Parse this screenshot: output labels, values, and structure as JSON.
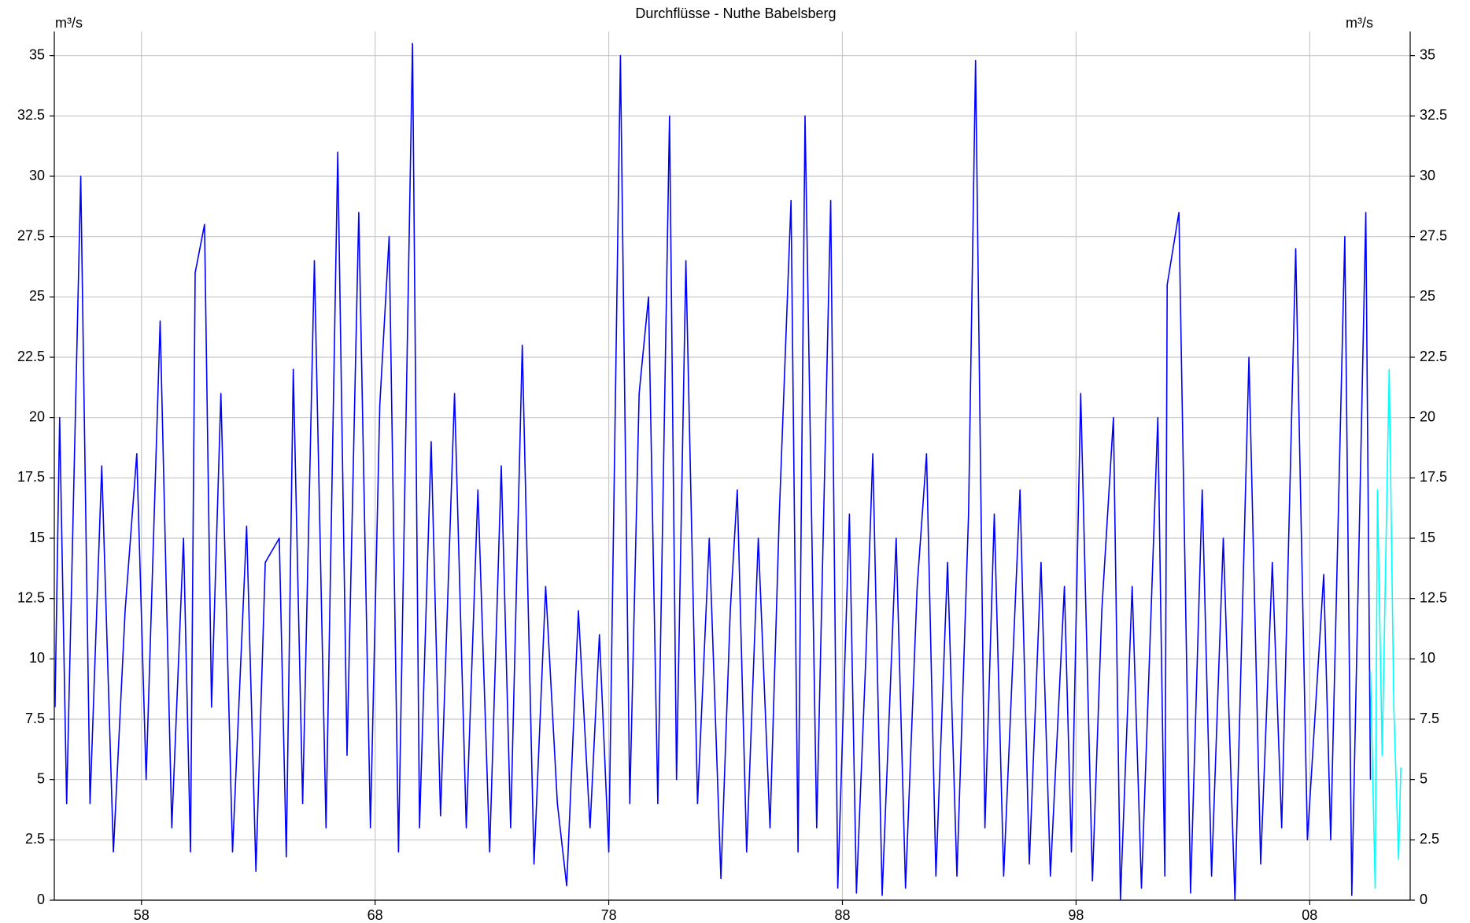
{
  "chart_data": {
    "type": "line",
    "title": "Durchflüsse - Nuthe Babelsberg",
    "ylabel": "m³/s",
    "y2label": "m³/s",
    "xlim": [
      1954.27,
      2012.3
    ],
    "xticks": [
      {
        "value": 1958,
        "label": "58"
      },
      {
        "value": 1968,
        "label": "68"
      },
      {
        "value": 1978,
        "label": "78"
      },
      {
        "value": 1988,
        "label": "88"
      },
      {
        "value": 1998,
        "label": "98"
      },
      {
        "value": 2008,
        "label": "08"
      }
    ],
    "ylim": [
      0,
      36
    ],
    "yticks": [
      0,
      2.5,
      5,
      7.5,
      10,
      12.5,
      15,
      17.5,
      20,
      22.5,
      25,
      27.5,
      30,
      32.5,
      35
    ],
    "y2lim": [
      0,
      36
    ],
    "y2ticks": [
      0,
      2.5,
      5,
      7.5,
      10,
      12.5,
      15,
      17.5,
      20,
      22.5,
      25,
      27.5,
      30,
      32.5,
      35
    ],
    "grid": true,
    "series": [
      {
        "color": "#0000ff",
        "x": [
          1954.3,
          1954.5,
          1954.8,
          1955.4,
          1955.8,
          1956.3,
          1956.8,
          1957.3,
          1957.8,
          1958.2,
          1958.8,
          1959.3,
          1959.8,
          1960.1,
          1960.3,
          1960.7,
          1961.0,
          1961.4,
          1961.9,
          1962.5,
          1962.9,
          1963.3,
          1963.9,
          1964.2,
          1964.5,
          1964.9,
          1965.4,
          1965.9,
          1966.4,
          1966.8,
          1967.3,
          1967.8,
          1968.2,
          1968.6,
          1969.0,
          1969.6,
          1969.9,
          1970.4,
          1970.8,
          1971.4,
          1971.9,
          1972.4,
          1972.9,
          1973.4,
          1973.8,
          1974.3,
          1974.8,
          1975.3,
          1975.8,
          1976.2,
          1976.7,
          1977.2,
          1977.6,
          1978.0,
          1978.5,
          1978.9,
          1979.3,
          1979.7,
          1980.1,
          1980.6,
          1980.9,
          1981.3,
          1981.8,
          1982.3,
          1982.8,
          1983.2,
          1983.5,
          1983.9,
          1984.4,
          1984.9,
          1985.3,
          1985.8,
          1986.1,
          1986.4,
          1986.9,
          1987.5,
          1987.8,
          1988.3,
          1988.6,
          1989.0,
          1989.3,
          1989.7,
          1990.3,
          1990.7,
          1991.2,
          1991.6,
          1992.0,
          1992.5,
          1992.9,
          1993.4,
          1993.7,
          1994.1,
          1994.5,
          1994.9,
          1995.6,
          1996.0,
          1996.5,
          1996.9,
          1997.5,
          1997.8,
          1998.2,
          1998.7,
          1999.1,
          1999.6,
          1999.9,
          2000.4,
          2000.8,
          2001.5,
          2001.8,
          2001.9,
          2002.4,
          2002.9,
          2003.4,
          2003.8,
          2004.3,
          2004.8,
          2005.4,
          2005.9,
          2006.4,
          2006.8,
          2007.4,
          2007.9,
          2008.6,
          2008.9,
          2009.5,
          2009.8,
          2010.4,
          2010.6
        ],
        "values": [
          8,
          20,
          4,
          30,
          4,
          18,
          2,
          12,
          18.5,
          5,
          24,
          3,
          15,
          2,
          26,
          28,
          8,
          21,
          2,
          15.5,
          1.2,
          14,
          15,
          1.8,
          22,
          4,
          26.5,
          3,
          31,
          6,
          28.5,
          3,
          20.5,
          27.5,
          2,
          35.5,
          3,
          19,
          3.5,
          21,
          3,
          17,
          2,
          18,
          3,
          23,
          1.5,
          13,
          4,
          0.6,
          12,
          3,
          11,
          2,
          35,
          4,
          21,
          25,
          4,
          32.5,
          5,
          26.5,
          4,
          15,
          0.9,
          12,
          17,
          2,
          15,
          3,
          16,
          29,
          2,
          32.5,
          3,
          29,
          0.5,
          16,
          0.3,
          10,
          18.5,
          0.2,
          15,
          0.5,
          13,
          18.5,
          1,
          14,
          1,
          16,
          34.8,
          3,
          16,
          1,
          17,
          1.5,
          14,
          1,
          13,
          2,
          21,
          0.8,
          12,
          20,
          0,
          13,
          0.5,
          20,
          1,
          25.5,
          28.5,
          0.3,
          17,
          1,
          15,
          0,
          22.5,
          1.5,
          14,
          3,
          27,
          2.5,
          13.5,
          2.5,
          27.5,
          0.2,
          28.5,
          5
        ]
      },
      {
        "color": "#00ffff",
        "x": [
          2010.6,
          2010.8,
          2010.9,
          2011.1,
          2011.4,
          2011.6,
          2011.8,
          2011.9
        ],
        "values": [
          9.5,
          0.5,
          17,
          6,
          22,
          8,
          1.7,
          5.5
        ]
      }
    ]
  }
}
